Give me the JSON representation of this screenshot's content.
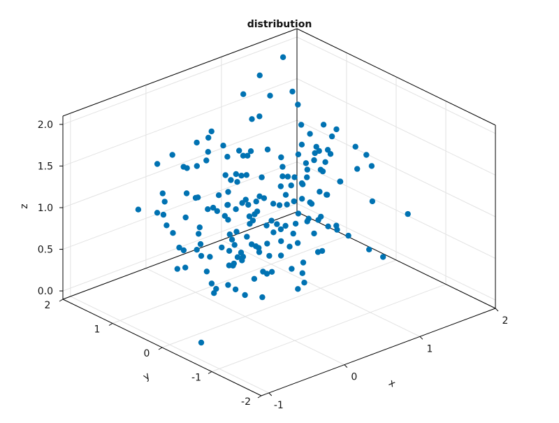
{
  "chart_data": {
    "type": "scatter",
    "title": "distribution",
    "xlabel": "x",
    "ylabel": "y",
    "zlabel": "z",
    "xlim": [
      -1.1,
      2.0
    ],
    "ylim": [
      -2.0,
      2.0
    ],
    "zlim": [
      -0.1,
      2.1
    ],
    "x_ticks": [
      "-1",
      "0",
      "1",
      "2"
    ],
    "y_ticks": [
      "-2",
      "-1",
      "0",
      "1",
      "2"
    ],
    "z_ticks": [
      "0.0",
      "0.5",
      "1.0",
      "1.5",
      "2.0"
    ],
    "grid": true,
    "marker_color": "#0072B2",
    "points": [
      [
        -0.62,
        0.72,
        1.38
      ],
      [
        1.19,
        1.31,
        1.77
      ],
      [
        -0.35,
        0.25,
        1.82
      ],
      [
        0.2,
        1.28,
        1.55
      ],
      [
        -0.34,
        1.13,
        0.91
      ],
      [
        0.24,
        -0.86,
        1.91
      ],
      [
        1.15,
        -0.8,
        1.55
      ],
      [
        -0.21,
        -0.26,
        1.41
      ],
      [
        0.87,
        0.99,
        0.99
      ],
      [
        -0.5,
        -0.05,
        0.8
      ],
      [
        -0.32,
        0.26,
        1.91
      ],
      [
        -0.42,
        0.69,
        0.67
      ],
      [
        0.47,
        -0.85,
        1.73
      ],
      [
        0.95,
        1.31,
        1.57
      ],
      [
        0.17,
        -0.28,
        0.46
      ],
      [
        0.24,
        0.21,
        0.91
      ],
      [
        1.74,
        0.39,
        0.97
      ],
      [
        -0.08,
        1.12,
        1.4
      ],
      [
        -0.1,
        0.38,
        1.28
      ],
      [
        -0.13,
        -0.29,
        1.14
      ],
      [
        1.08,
        0.4,
        1.09
      ],
      [
        0.25,
        0.25,
        0.61
      ],
      [
        -0.91,
        -0.71,
        0.81
      ],
      [
        0.37,
        -0.42,
        1.28
      ],
      [
        1.56,
        0.9,
        0.27
      ],
      [
        1.46,
        0.37,
        0.34
      ],
      [
        -0.05,
        0.81,
        0.41
      ],
      [
        0.94,
        -0.65,
        0.74
      ],
      [
        0.64,
        0.86,
        1.42
      ],
      [
        1.05,
        -0.9,
        0.61
      ],
      [
        -0.66,
        -0.94,
        1.07
      ],
      [
        0.27,
        1.35,
        0.41
      ],
      [
        -0.07,
        -0.39,
        0.81
      ],
      [
        0.49,
        1.09,
        0.58
      ],
      [
        0.88,
        0.06,
        0.76
      ],
      [
        1.29,
        1.74,
        0.34
      ],
      [
        0.56,
        -0.4,
        1.59
      ],
      [
        1.94,
        1.89,
        1.24
      ],
      [
        -0.34,
        0.85,
        0.34
      ],
      [
        -0.05,
        1.38,
        0.52
      ],
      [
        0.2,
        -0.45,
        1.76
      ],
      [
        -0.95,
        -0.56,
        0.07
      ],
      [
        0.75,
        -0.77,
        1.49
      ],
      [
        0.06,
        -0.98,
        1.4
      ],
      [
        0.32,
        -0.08,
        1.17
      ],
      [
        -0.63,
        -0.33,
        0.49
      ],
      [
        0.9,
        -0.47,
        1.98
      ],
      [
        0.02,
        -0.54,
        1.06
      ],
      [
        -0.45,
        0.29,
        0.77
      ],
      [
        -0.22,
        0.01,
        0.35
      ],
      [
        0.12,
        -0.26,
        0.81
      ],
      [
        0.48,
        1.09,
        1.34
      ],
      [
        0.47,
        0.98,
        0.38
      ],
      [
        0.56,
        -0.82,
        1.03
      ],
      [
        0.29,
        1.12,
        1.7
      ],
      [
        1.06,
        -0.95,
        1.2
      ],
      [
        -0.48,
        -0.42,
        1.17
      ],
      [
        0.81,
        0.09,
        1.2
      ],
      [
        -0.19,
        0.91,
        0.89
      ],
      [
        0.4,
        1.35,
        1.52
      ],
      [
        0.19,
        -0.53,
        1.45
      ],
      [
        1.09,
        0.27,
        1.33
      ],
      [
        -0.33,
        0.67,
        1.6
      ],
      [
        0.7,
        0.85,
        0.26
      ],
      [
        0.3,
        0.54,
        0.41
      ],
      [
        0.38,
        0.7,
        1.56
      ],
      [
        0.59,
        -0.12,
        0.85
      ],
      [
        0.56,
        0.4,
        1.6
      ],
      [
        -0.07,
        -0.29,
        0.46
      ],
      [
        0.22,
        -0.01,
        0.06
      ],
      [
        0.47,
        0.9,
        1.19
      ],
      [
        -0.11,
        -0.89,
        1.1
      ],
      [
        1.23,
        1.03,
        0.53
      ],
      [
        0.88,
        0.62,
        0.47
      ],
      [
        0.1,
        -0.91,
        0.46
      ],
      [
        1.71,
        0.38,
        1.25
      ],
      [
        0.06,
        -0.6,
        1.39
      ],
      [
        -0.44,
        -0.96,
        1.77
      ],
      [
        0.88,
        0.37,
        0.49
      ],
      [
        0.23,
        0.51,
        1.29
      ],
      [
        0.24,
        0.54,
        0.68
      ],
      [
        -0.54,
        0.8,
        1.23
      ],
      [
        -0.86,
        -0.96,
        1.81
      ],
      [
        0.26,
        0.96,
        0.8
      ],
      [
        -0.31,
        1.3,
        1.46
      ],
      [
        0.51,
        0.99,
        0.3
      ],
      [
        -0.76,
        0.05,
        0.73
      ],
      [
        -0.67,
        0.16,
        1.56
      ],
      [
        0.98,
        -0.03,
        1.34
      ],
      [
        -0.62,
        -0.6,
        1.78
      ],
      [
        1.59,
        1.29,
        1.29
      ],
      [
        0.04,
        -0.32,
        1.4
      ],
      [
        1.59,
        0.93,
        1.08
      ],
      [
        0.52,
        1.79,
        0.63
      ],
      [
        0.52,
        1.15,
        0.73
      ],
      [
        1.52,
        1.55,
        2.05
      ],
      [
        0.9,
        0.03,
        0.94
      ],
      [
        0.85,
        1.69,
        0.82
      ],
      [
        1.0,
        1.46,
        0.48
      ],
      [
        1.36,
        0.35,
        1.29
      ],
      [
        0.52,
        1.08,
        1.05
      ],
      [
        -0.24,
        0.22,
        0.25
      ],
      [
        -0.66,
        -0.23,
        0.73
      ],
      [
        0.94,
        -0.07,
        1.1
      ],
      [
        1.09,
        -0.09,
        1.72
      ],
      [
        -0.75,
        -1.1,
        1.19
      ],
      [
        1.27,
        0.28,
        0.85
      ],
      [
        1.23,
        1.91,
        1.6
      ],
      [
        0.31,
        0.2,
        0.56
      ],
      [
        -0.3,
        1.01,
        1.65
      ],
      [
        0.38,
        -1.34,
        1.78
      ],
      [
        -0.26,
        -0.43,
        1.07
      ],
      [
        0.21,
        -0.32,
        1.03
      ],
      [
        0.82,
        -0.06,
        1.01
      ],
      [
        1.73,
        0.19,
        1.2
      ],
      [
        0.08,
        -1.07,
        0.59
      ],
      [
        0.52,
        -0.35,
        1.89
      ],
      [
        0.07,
        1.08,
        1.37
      ],
      [
        0.57,
        0.82,
        1.4
      ],
      [
        -0.11,
        0.02,
        1.22
      ],
      [
        -0.39,
        0.99,
        0.84
      ],
      [
        0.75,
        0.61,
        0.62
      ],
      [
        0.05,
        -0.82,
        0.96
      ],
      [
        0.62,
        -0.49,
        1.87
      ],
      [
        1.51,
        2.01,
        1.21
      ],
      [
        0.23,
        -0.71,
        0.91
      ],
      [
        -0.41,
        1.53,
        0.88
      ],
      [
        0.26,
        -1.22,
        2.02
      ],
      [
        0.05,
        -0.41,
        0.73
      ],
      [
        0.23,
        0.76,
        0.81
      ],
      [
        0.36,
        -0.17,
        1.39
      ],
      [
        1.69,
        1.62,
        1.56
      ],
      [
        1.09,
        -1.12,
        0.57
      ],
      [
        0.39,
        -0.22,
        0.92
      ],
      [
        0.58,
        0.64,
        0.78
      ],
      [
        -0.41,
        0.13,
        1.29
      ],
      [
        0.68,
        0.04,
        1.33
      ],
      [
        0.8,
        -0.62,
        0.9
      ],
      [
        0.95,
        -0.08,
        0.8
      ],
      [
        0.46,
        -0.16,
        1.47
      ],
      [
        0.68,
        1.11,
        1.04
      ],
      [
        -0.39,
        -0.59,
        0.46
      ],
      [
        0.3,
        1.41,
        0.82
      ],
      [
        0.41,
        0.87,
        0.12
      ],
      [
        0.92,
        -0.24,
        1.12
      ],
      [
        0.05,
        0.27,
        0.13
      ],
      [
        0.44,
        0.31,
        0.2
      ],
      [
        0.82,
        -0.22,
        0.46
      ],
      [
        0.76,
        0.23,
        1.15
      ],
      [
        0.09,
        0.46,
        0.35
      ],
      [
        0.7,
        -0.08,
        1.1
      ],
      [
        1.24,
        1.86,
        0.64
      ],
      [
        -0.42,
        -0.83,
        1.51
      ],
      [
        0.66,
        -0.15,
        0.24
      ],
      [
        1.42,
        1.09,
        1.05
      ],
      [
        1.31,
        1.24,
        0.78
      ],
      [
        -0.58,
        -0.73,
        1.02
      ],
      [
        1.13,
        -1.56,
        1.2
      ],
      [
        0.3,
        -0.48,
        0.51
      ],
      [
        0.24,
        0.28,
        0.94
      ],
      [
        0.49,
        -0.56,
        2.09
      ],
      [
        -0.6,
        -0.44,
        1.06
      ],
      [
        1.4,
        0.55,
        1.57
      ],
      [
        -0.18,
        0.37,
        1.16
      ],
      [
        0.57,
        1.31,
        1.38
      ],
      [
        0.89,
        -0.31,
        1.69
      ],
      [
        0.71,
        -0.17,
        0.85
      ],
      [
        -0.37,
        1.21,
        0.92
      ],
      [
        0.54,
        0.1,
        0.42
      ],
      [
        0.23,
        0.39,
        1.64
      ],
      [
        0.67,
        -0.14,
        1.3
      ],
      [
        -0.25,
        -0.06,
        0.79
      ],
      [
        -0.17,
        -0.69,
        1.25
      ],
      [
        1.31,
        1.7,
        1.86
      ],
      [
        0.56,
        -0.7,
        0.7
      ],
      [
        -0.32,
        -0.26,
        0.72
      ],
      [
        1.09,
        0.27,
        0.45
      ],
      [
        -0.8,
        -1.23,
        1.93
      ],
      [
        0.46,
        1.6,
        0.15
      ],
      [
        0.06,
        -1.08,
        0.84
      ],
      [
        1.58,
        1.68,
        0.79
      ],
      [
        0.36,
        0.11,
        0.26
      ],
      [
        0.02,
        1.27,
        0.32
      ],
      [
        1.41,
        0.74,
        1.17
      ],
      [
        0.16,
        1.16,
        0.58
      ]
    ]
  }
}
